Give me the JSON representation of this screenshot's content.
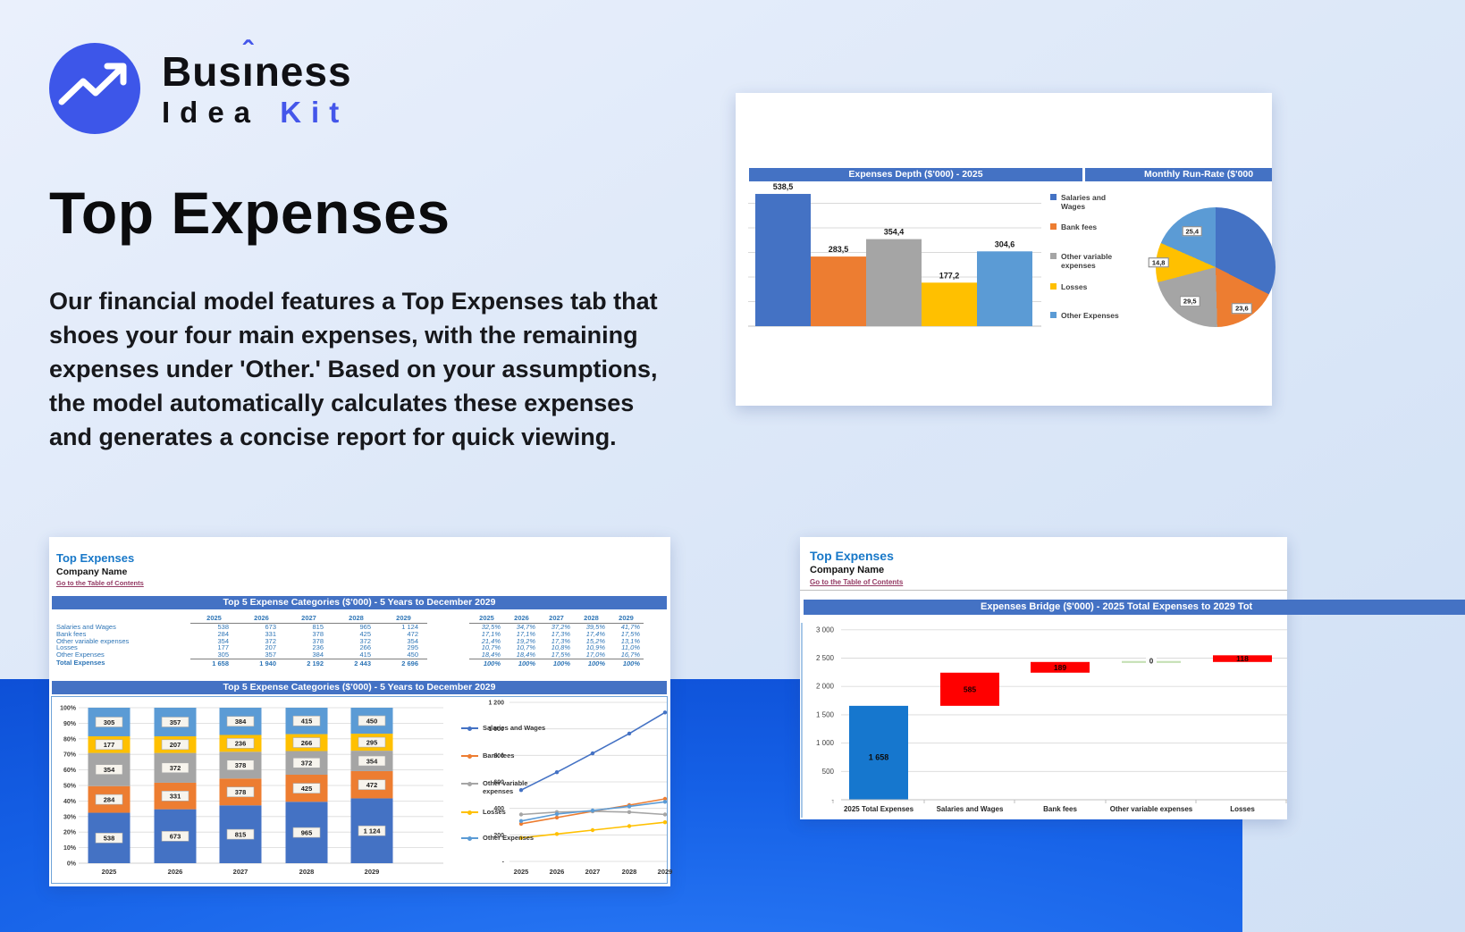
{
  "brand": {
    "pre": "Bus",
    "i_letter": "ı",
    "caret": "ˆ",
    "post": "ness",
    "idea": "Idea",
    "kit": "Kit"
  },
  "hero": {
    "title": "Top Expenses",
    "paragraph": "Our financial model features a Top Expenses tab that shoes your four main expenses, with the remaining expenses under 'Other.' Based on your assumptions, the model automatically calculates these expenses and generates a concise report for quick viewing."
  },
  "depth_card": {
    "title_left": "Expenses Depth ($'000) - 2025",
    "title_right": "Monthly Run-Rate ($'000"
  },
  "top5_sheet": {
    "title": "Top Expenses",
    "company": "Company Name",
    "link": "Go to the Table of Contents",
    "banner_table": "Top 5 Expense Categories ($'000) - 5 Years to December 2029",
    "banner_chart": "Top 5 Expense Categories ($'000) - 5 Years to December 2029",
    "total_label": "Total Expenses"
  },
  "bridge_sheet": {
    "title": "Top Expenses",
    "company": "Company Name",
    "link": "Go to the Table of Contents",
    "banner": "Expenses Bridge ($'000) - 2025 Total Expenses to 2029 Tot"
  },
  "chart_data": [
    {
      "id": "expenses_depth",
      "type": "bar",
      "title": "Expenses Depth ($'000) - 2025",
      "categories": [
        "Salaries and Wages",
        "Bank fees",
        "Other variable expenses",
        "Losses",
        "Other Expenses"
      ],
      "values": [
        538.5,
        283.5,
        354.4,
        177.2,
        304.6
      ],
      "labels": [
        "538,5",
        "283,5",
        "354,4",
        "177,2",
        "304,6"
      ],
      "colors": [
        "#4472C4",
        "#ED7D31",
        "#A5A5A5",
        "#FFC000",
        "#5B9BD5"
      ],
      "legend_position": "right",
      "ylim": [
        0,
        600
      ],
      "gridline_step": 100
    },
    {
      "id": "monthly_run_rate",
      "type": "pie",
      "title": "Monthly Run-Rate ($'000",
      "values": [
        44.9,
        23.6,
        29.5,
        14.8,
        25.4
      ],
      "labels": [
        "",
        "23,6",
        "29,5",
        "14,8",
        "25,4"
      ],
      "colors": [
        "#4472C4",
        "#ED7D31",
        "#A5A5A5",
        "#FFC000",
        "#5B9BD5"
      ]
    },
    {
      "id": "top5_stacked",
      "type": "bar",
      "subtype": "stacked-100pct",
      "title": "Top 5 Expense Categories ($'000) - 5 Years to December 2029",
      "categories": [
        "2025",
        "2026",
        "2027",
        "2028",
        "2029"
      ],
      "series": [
        {
          "name": "Salaries and Wages",
          "color": "#4472C4",
          "values": [
            "538",
            "673",
            "815",
            "965",
            "1 124"
          ],
          "pcts": [
            "32,5%",
            "34,7%",
            "37,2%",
            "39,5%",
            "41,7%"
          ]
        },
        {
          "name": "Bank fees",
          "color": "#ED7D31",
          "values": [
            "284",
            "331",
            "378",
            "425",
            "472"
          ],
          "pcts": [
            "17,1%",
            "17,1%",
            "17,3%",
            "17,4%",
            "17,5%"
          ]
        },
        {
          "name": "Other variable expenses",
          "color": "#A5A5A5",
          "values": [
            "354",
            "372",
            "378",
            "372",
            "354"
          ],
          "pcts": [
            "21,4%",
            "19,2%",
            "17,3%",
            "15,2%",
            "13,1%"
          ]
        },
        {
          "name": "Losses",
          "color": "#FFC000",
          "values": [
            "177",
            "207",
            "236",
            "266",
            "295"
          ],
          "pcts": [
            "10,7%",
            "10,7%",
            "10,8%",
            "10,9%",
            "11,0%"
          ]
        },
        {
          "name": "Other Expenses",
          "color": "#5B9BD5",
          "values": [
            "305",
            "357",
            "384",
            "415",
            "450"
          ],
          "pcts": [
            "18,4%",
            "18,4%",
            "17,5%",
            "17,0%",
            "16,7%"
          ]
        }
      ],
      "totals": [
        "1 658",
        "1 940",
        "2 192",
        "2 443",
        "2 696"
      ],
      "total_pcts": [
        "100%",
        "100%",
        "100%",
        "100%",
        "100%"
      ],
      "y_ticks": [
        "100%",
        "90%",
        "80%",
        "70%",
        "60%",
        "50%",
        "40%",
        "30%",
        "20%",
        "10%",
        "0%"
      ]
    },
    {
      "id": "top5_lines",
      "type": "line",
      "x": [
        "2025",
        "2026",
        "2027",
        "2028",
        "2029"
      ],
      "series_from": "top5_stacked",
      "y_ticks": [
        "1 200",
        "1 000",
        "800",
        "600",
        "400",
        "200",
        "-"
      ]
    },
    {
      "id": "expenses_bridge",
      "type": "waterfall",
      "title": "Expenses Bridge ($'000) - 2025 Total Expenses to 2029 Tot",
      "categories": [
        "2025 Total Expenses",
        "Salaries and Wages",
        "Bank fees",
        "Other variable expenses",
        "Losses"
      ],
      "steps": [
        {
          "label": "2025 Total Expenses",
          "display": "1 658",
          "delta": 1658,
          "kind": "base"
        },
        {
          "label": "Salaries and Wages",
          "display": "585",
          "delta": 585,
          "kind": "increase"
        },
        {
          "label": "Bank fees",
          "display": "189",
          "delta": 189,
          "kind": "increase"
        },
        {
          "label": "Other variable expenses",
          "display": "0",
          "delta": 0,
          "kind": "flat"
        },
        {
          "label": "Losses",
          "display": "118",
          "delta": 118,
          "kind": "increase"
        }
      ],
      "colors": {
        "base": "#1677CE",
        "increase": "#FF0000",
        "flat": "#C5E0B4"
      },
      "y_ticks": [
        "-",
        "500",
        "1 000",
        "1 500",
        "2 000",
        "2 500",
        "3 000"
      ]
    }
  ]
}
